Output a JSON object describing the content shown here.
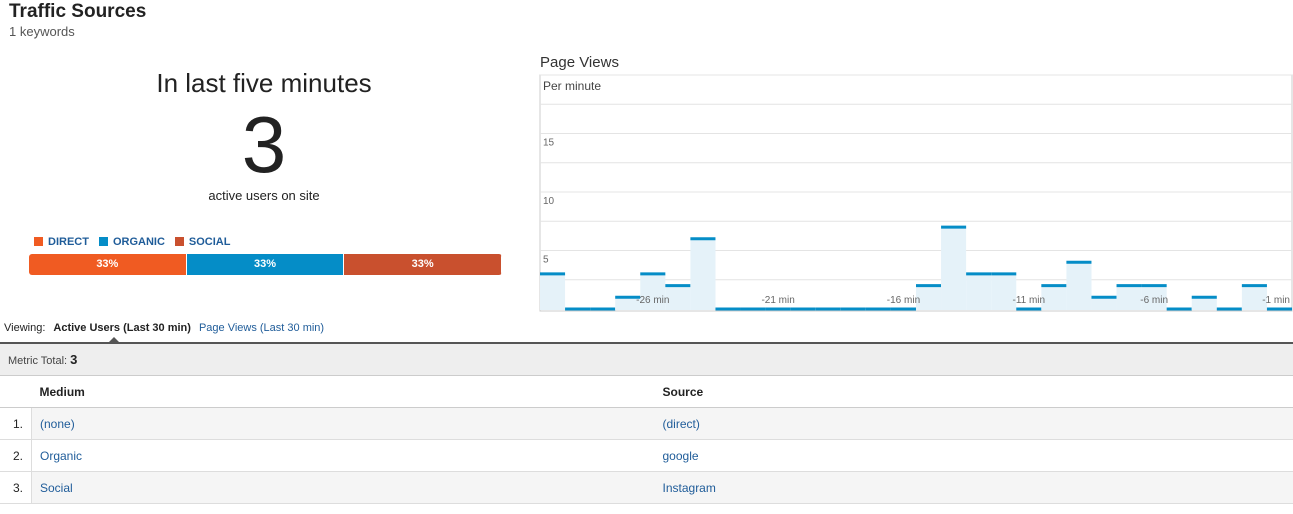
{
  "header": {
    "title": "Traffic Sources",
    "subtitle": "1 keywords"
  },
  "summary": {
    "heading": "In last five minutes",
    "count": 3,
    "caption": "active users on site"
  },
  "breakdown": {
    "segments": [
      {
        "name": "DIRECT",
        "color": "#f05b22",
        "value": 33,
        "value_label": "33%"
      },
      {
        "name": "ORGANIC",
        "color": "#058dc7",
        "value": 33,
        "value_label": "33%"
      },
      {
        "name": "SOCIAL",
        "color": "#c9502e",
        "value": 33,
        "value_label": "33%"
      }
    ]
  },
  "chart_data": {
    "type": "bar",
    "title": "Page Views",
    "subtitle": "Per minute",
    "categories": [
      null,
      null,
      null,
      null,
      "-26 min",
      null,
      null,
      null,
      null,
      "-21 min",
      null,
      null,
      null,
      null,
      "-16 min",
      null,
      null,
      null,
      null,
      "-11 min",
      null,
      null,
      null,
      null,
      "-6 min",
      null,
      null,
      null,
      null,
      "-1 min"
    ],
    "values": [
      3,
      0,
      0,
      1,
      3,
      2,
      6,
      0,
      0,
      0,
      0,
      0,
      0,
      0,
      0,
      2,
      7,
      3,
      3,
      0,
      2,
      4,
      1,
      2,
      2,
      0,
      1,
      0,
      2,
      0
    ],
    "color": "#058dc7",
    "fill": "#e5f2f9",
    "ylim": [
      0,
      20
    ],
    "yticks": [
      5,
      10,
      15
    ],
    "minor_yticks": [
      2.5,
      7.5,
      12.5,
      17.5,
      20
    ],
    "grid": true
  },
  "tabs": {
    "label": "Viewing:",
    "items": [
      "Active Users (Last 30 min)",
      "Page Views (Last 30 min)"
    ]
  },
  "metric": {
    "label": "Metric Total:",
    "value": 3
  },
  "table": {
    "columns": [
      "Medium",
      "Source"
    ],
    "rows": [
      [
        "1.",
        "(none)",
        "(direct)"
      ],
      [
        "2.",
        "Organic",
        "google"
      ],
      [
        "3.",
        "Social",
        "Instagram"
      ]
    ]
  }
}
